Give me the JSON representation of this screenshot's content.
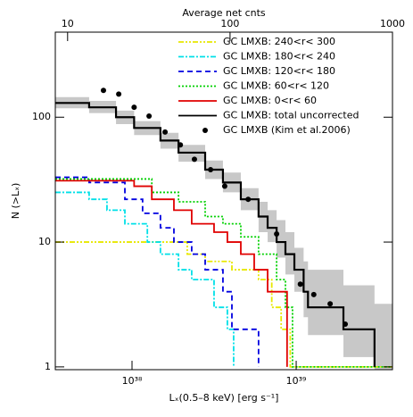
{
  "chart_data": {
    "type": "step",
    "xlabel": "Lₓ(0.5–8 keV) [erg s⁻¹]",
    "ylabel": "N (>Lₓ)",
    "x2label": "Average net cnts",
    "xscale": "log",
    "yscale": "log",
    "xlim": [
      3.41e+37,
      3.86e+39
    ],
    "ylim": [
      0.95,
      480
    ],
    "x2lim": [
      8.4,
      1000
    ],
    "xticks": [
      {
        "value": 1e+38,
        "label": "10³⁸"
      },
      {
        "value": 1e+39,
        "label": "10³⁹"
      }
    ],
    "yticks": [
      1,
      10,
      100
    ],
    "x2ticks": [
      10,
      100,
      1000
    ],
    "band": {
      "color": "#c8c8c8",
      "x": [
        3.41e+37,
        5.48e+37,
        7.99e+37,
        1.03e+38,
        1.49e+38,
        1.92e+38,
        2.79e+38,
        3.58e+38,
        4.6e+38,
        5.9e+38,
        6.7e+38,
        7.6e+38,
        8.6e+38,
        9.75e+38,
        1.11e+39,
        1.18e+39,
        1.94e+39,
        3e+39
      ],
      "upper": [
        145,
        135,
        113,
        93,
        75,
        60,
        45,
        36,
        27,
        21,
        18,
        15,
        12,
        9,
        7,
        6,
        4.5,
        3.2
      ],
      "lower": [
        118,
        108,
        88,
        72,
        56,
        44,
        32,
        25,
        18,
        12,
        10,
        7.5,
        5.5,
        4,
        2.5,
        1.8,
        1.2,
        0.95
      ]
    },
    "series": [
      {
        "name": "GC LMXB: 240<r< 300",
        "color": "#e8e800",
        "dash": "6 2 2 2 2 2",
        "style": "step",
        "x": [
          3.41e+37,
          2.17e+38,
          2.79e+38,
          4.06e+38,
          5.9e+38,
          7.1e+38,
          8.1e+38,
          9.2e+38,
          3.86e+39
        ],
        "values": [
          10,
          8,
          7,
          6,
          5,
          3,
          2,
          1,
          1
        ]
      },
      {
        "name": "GC LMXB: 180<r< 240",
        "color": "#00e0e8",
        "dash": "6 2 2 2",
        "style": "step",
        "x": [
          3.41e+37,
          5.48e+37,
          7.04e+37,
          9.05e+37,
          1.24e+38,
          1.49e+38,
          1.92e+38,
          2.31e+38,
          3.16e+38,
          3.81e+38,
          4.16e+38
        ],
        "values": [
          25,
          22,
          18,
          14,
          10,
          8,
          6,
          5,
          3,
          2,
          1
        ]
      },
      {
        "name": "GC LMXB: 120<r< 180",
        "color": "#0000e0",
        "dash": "6 4",
        "style": "step",
        "x": [
          3.41e+37,
          5.48e+37,
          9.05e+37,
          1.16e+38,
          1.49e+38,
          1.8e+38,
          2.31e+38,
          2.79e+38,
          3.58e+38,
          4.06e+38,
          5.9e+38
        ],
        "values": [
          33,
          30,
          22,
          17,
          13,
          10,
          8,
          6,
          4,
          2,
          1
        ]
      },
      {
        "name": "GC LMXB: 60<r< 120",
        "color": "#00d000",
        "dash": "2 2",
        "style": "step",
        "x": [
          3.41e+37,
          1.32e+38,
          1.92e+38,
          2.79e+38,
          3.58e+38,
          4.6e+38,
          5.9e+38,
          7.6e+38,
          8.6e+38,
          9.5e+38,
          3.86e+39
        ],
        "values": [
          32,
          25,
          21,
          16,
          14,
          11,
          8,
          5,
          3,
          1,
          1
        ]
      },
      {
        "name": "GC LMXB: 0<r< 60",
        "color": "#e00000",
        "dash": "none",
        "style": "step",
        "x": [
          3.41e+37,
          1.03e+38,
          1.32e+38,
          1.8e+38,
          2.31e+38,
          3.16e+38,
          3.81e+38,
          4.6e+38,
          5.55e+38,
          6.7e+38,
          8.8e+38
        ],
        "values": [
          31,
          28,
          22,
          18,
          14,
          12,
          10,
          8,
          6,
          4,
          1
        ]
      },
      {
        "name": "GC LMXB: total uncorrected",
        "color": "#000000",
        "dash": "none",
        "style": "step",
        "x": [
          3.41e+37,
          5.48e+37,
          7.99e+37,
          1.03e+38,
          1.49e+38,
          1.92e+38,
          2.79e+38,
          3.58e+38,
          4.6e+38,
          5.9e+38,
          6.7e+38,
          7.6e+38,
          8.6e+38,
          9.75e+38,
          1.11e+39,
          1.18e+39,
          1.94e+39,
          3e+39
        ],
        "values": [
          130,
          120,
          100,
          82,
          65,
          52,
          38,
          30,
          22,
          16,
          13,
          10,
          8,
          6,
          4,
          3,
          2,
          1
        ]
      },
      {
        "name": "GC LMXB (Kim et al.2006)",
        "color": "#000000",
        "style": "points",
        "x": [
          6.7e+37,
          8.3e+37,
          1.03e+38,
          1.27e+38,
          1.59e+38,
          1.97e+38,
          2.4e+38,
          3.01e+38,
          3.67e+38,
          5.1e+38,
          7.6e+38,
          1.06e+39,
          1.28e+39,
          1.61e+39,
          1.99e+39
        ],
        "values": [
          164,
          153,
          120,
          102,
          76,
          60,
          46,
          38,
          28,
          22,
          11.6,
          4.6,
          3.8,
          3.2,
          2.2
        ]
      }
    ]
  }
}
